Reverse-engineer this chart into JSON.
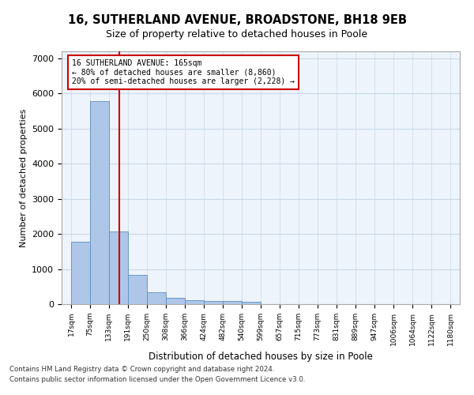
{
  "title_line1": "16, SUTHERLAND AVENUE, BROADSTONE, BH18 9EB",
  "title_line2": "Size of property relative to detached houses in Poole",
  "xlabel": "Distribution of detached houses by size in Poole",
  "ylabel": "Number of detached properties",
  "bar_color": "#aec6e8",
  "bar_edge_color": "#5a8fc0",
  "grid_color": "#c8d8e8",
  "background_color": "#eef4fb",
  "annotation_line_color": "#cc0000",
  "annotation_box_color": "#cc0000",
  "annotation_text": "16 SUTHERLAND AVENUE: 165sqm\n← 80% of detached houses are smaller (8,860)\n20% of semi-detached houses are larger (2,228) →",
  "property_size_sqm": 165,
  "bin_edges": [
    17,
    75,
    133,
    191,
    250,
    308,
    366,
    424,
    482,
    540,
    599,
    657,
    715,
    773,
    831,
    889,
    947,
    1006,
    1064,
    1122,
    1180
  ],
  "bar_heights": [
    1780,
    5780,
    2060,
    830,
    340,
    190,
    120,
    100,
    95,
    70,
    0,
    0,
    0,
    0,
    0,
    0,
    0,
    0,
    0,
    0
  ],
  "tick_labels": [
    "17sqm",
    "75sqm",
    "133sqm",
    "191sqm",
    "250sqm",
    "308sqm",
    "366sqm",
    "424sqm",
    "482sqm",
    "540sqm",
    "599sqm",
    "657sqm",
    "715sqm",
    "773sqm",
    "831sqm",
    "889sqm",
    "947sqm",
    "1006sqm",
    "1064sqm",
    "1122sqm",
    "1180sqm"
  ],
  "ylim": [
    0,
    7200
  ],
  "yticks": [
    0,
    1000,
    2000,
    3000,
    4000,
    5000,
    6000,
    7000
  ],
  "footnote1": "Contains HM Land Registry data © Crown copyright and database right 2024.",
  "footnote2": "Contains public sector information licensed under the Open Government Licence v3.0."
}
